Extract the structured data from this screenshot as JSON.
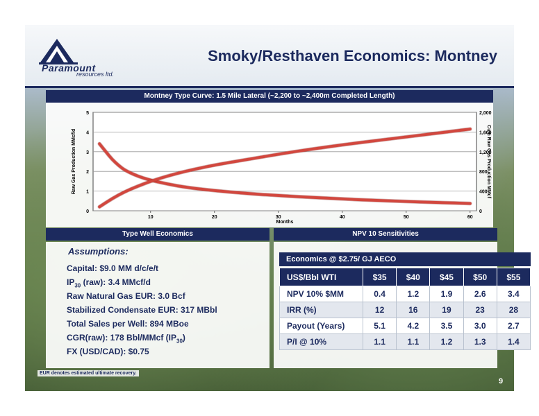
{
  "slide": {
    "title": "Smoky/Resthaven Economics: Montney",
    "logo_word": "Paramount",
    "logo_sub": "resources ltd.",
    "page_number": "9",
    "footnote": "EUR denotes estimated ultimate recovery."
  },
  "chart_data": {
    "type": "line",
    "title": "Montney Type Curve: 1.5 Mile Lateral (~2,200 to ~2,400m Completed Length)",
    "xlabel": "Months",
    "ylabel": "Raw Gas Production MMcf/d",
    "y2label": "Cum Raw Gas Production MMcf",
    "xlim": [
      1,
      61
    ],
    "ylim": [
      0,
      5
    ],
    "y2lim": [
      0,
      2000
    ],
    "x_ticks": [
      10,
      20,
      30,
      40,
      50,
      60
    ],
    "y_ticks": [
      0,
      1,
      2,
      3,
      4,
      5
    ],
    "y2_ticks": [
      "0",
      "400",
      "800",
      "1,200",
      "1,600",
      "2,000"
    ],
    "grid": true,
    "series": [
      {
        "axis": "left",
        "color": "#d2473e",
        "x": [
          2,
          3,
          4,
          5,
          6,
          8,
          10,
          13,
          16,
          20,
          25,
          30,
          35,
          40,
          45,
          50,
          55,
          60
        ],
        "values": [
          3.4,
          3.0,
          2.6,
          2.3,
          2.05,
          1.75,
          1.55,
          1.33,
          1.17,
          1.02,
          0.88,
          0.77,
          0.68,
          0.6,
          0.53,
          0.47,
          0.42,
          0.37
        ]
      },
      {
        "axis": "right",
        "color": "#d2473e",
        "x": [
          2,
          4,
          6,
          8,
          10,
          13,
          16,
          20,
          25,
          30,
          35,
          40,
          45,
          50,
          55,
          60
        ],
        "values": [
          80,
          250,
          390,
          500,
          600,
          720,
          820,
          930,
          1040,
          1150,
          1250,
          1340,
          1420,
          1500,
          1580,
          1660
        ]
      }
    ]
  },
  "sections": {
    "economics_head": "Type Well Economics",
    "npv_head": "NPV 10 Sensitivities"
  },
  "assumptions": {
    "title": "Assumptions:",
    "capital": "Capital: $9.0 MM  d/c/e/t",
    "ip_prefix": "IP",
    "ip_sub": "30",
    "ip_rest": " (raw): 3.4 MMcf/d",
    "gas_eur": "Raw Natural Gas EUR: 3.0 Bcf",
    "condensate": "Stabilized Condensate EUR: 317 MBbl",
    "sales": "Total Sales per Well: 894 MBoe",
    "cgr_prefix": "CGR(raw): 178 Bbl/MMcf  (IP",
    "cgr_sub": "30",
    "cgr_suffix": ")",
    "fx": "FX (USD/CAD): $0.75"
  },
  "npv_table": {
    "caption": "Economics @ $2.75/ GJ AECO",
    "headers": [
      "US$/Bbl  WTI",
      "$35",
      "$40",
      "$45",
      "$50",
      "$55"
    ],
    "rows": [
      [
        "NPV 10% $MM",
        "0.4",
        "1.2",
        "1.9",
        "2.6",
        "3.4"
      ],
      [
        "IRR (%)",
        "12",
        "16",
        "19",
        "23",
        "28"
      ],
      [
        "Payout (Years)",
        "5.1",
        "4.2",
        "3.5",
        "3.0",
        "2.7"
      ],
      [
        "P/I @ 10%",
        "1.1",
        "1.1",
        "1.2",
        "1.3",
        "1.4"
      ]
    ]
  }
}
